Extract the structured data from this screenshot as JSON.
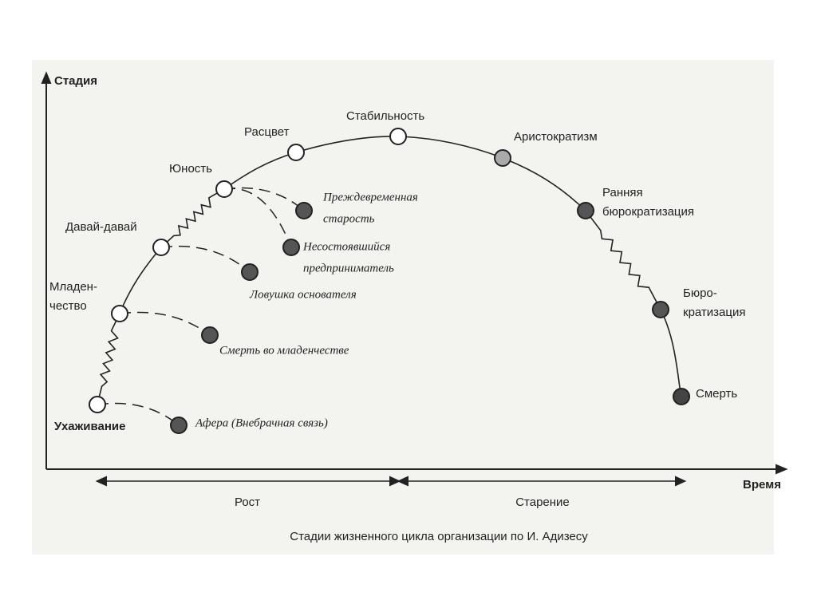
{
  "axes": {
    "y_label": "Стадия",
    "x_label": "Время"
  },
  "stages": [
    {
      "label": [
        "Ухаживание"
      ]
    },
    {
      "label": [
        "Младен-",
        "чество"
      ]
    },
    {
      "label": [
        "Давай-давай"
      ]
    },
    {
      "label": [
        "Юность"
      ]
    },
    {
      "label": [
        "Расцвет"
      ]
    },
    {
      "label": [
        "Стабильность"
      ]
    },
    {
      "label": [
        "Аристократизм"
      ]
    },
    {
      "label": [
        "Ранняя",
        "бюрократизация"
      ]
    },
    {
      "label": [
        "Бюро-",
        "кратизация"
      ]
    },
    {
      "label": [
        "Смерть"
      ]
    }
  ],
  "traps": [
    {
      "label": [
        "Преждевременная",
        "старость"
      ]
    },
    {
      "label": [
        "Несостоявшийся",
        "предприниматель"
      ]
    },
    {
      "label": [
        "Ловушка основателя"
      ]
    },
    {
      "label": [
        "Смерть во младенчестве"
      ]
    },
    {
      "label": [
        "Афера (Внебрачная связь)"
      ]
    }
  ],
  "periods": [
    "Рост",
    "Старение"
  ],
  "caption": "Стадии жизненного цикла организации по И. Адизесу"
}
